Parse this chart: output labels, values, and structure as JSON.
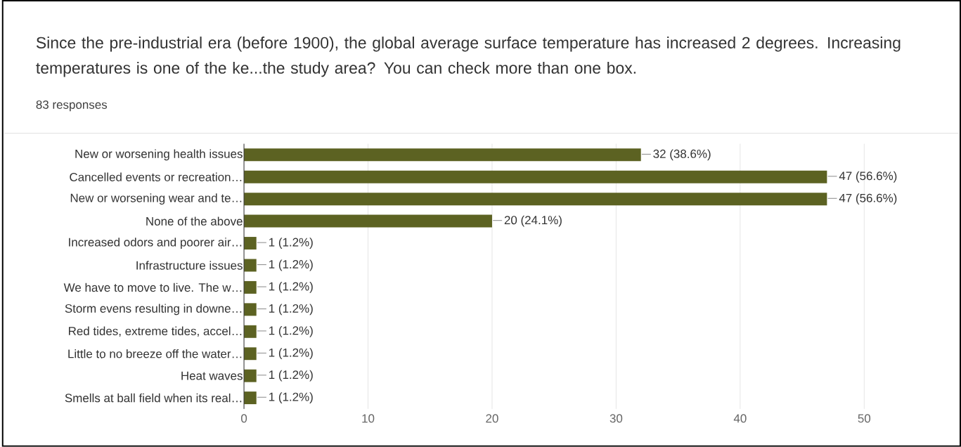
{
  "chart_data": {
    "type": "bar",
    "orientation": "horizontal",
    "title": "Since the pre-industrial era (before 1900), the global average surface temperature has increased 2 degrees. Increasing temperatures is one of the ke...the study area? You can check more than one box.",
    "subtitle": "83 responses",
    "categories": [
      "New or worsening health issues",
      "Cancelled events or recreation…",
      "New or worsening wear and te…",
      "None of the above",
      "Increased odors and poorer air…",
      "Infrastructure issues",
      "We have to move to live. The w…",
      "Storm evens resulting in downe…",
      "Red tides, extreme tides, accel…",
      "Little to no breeze off the water…",
      "Heat waves",
      "Smells at ball field when its real…"
    ],
    "values": [
      32,
      47,
      47,
      20,
      1,
      1,
      1,
      1,
      1,
      1,
      1,
      1
    ],
    "value_labels": [
      "32 (38.6%)",
      "47 (56.6%)",
      "47 (56.6%)",
      "20 (24.1%)",
      "1 (1.2%)",
      "1 (1.2%)",
      "1 (1.2%)",
      "1 (1.2%)",
      "1 (1.2%)",
      "1 (1.2%)",
      "1 (1.2%)",
      "1 (1.2%)"
    ],
    "color": "#5c6222",
    "xlim": [
      0,
      50
    ],
    "xticks": [
      0,
      10,
      20,
      30,
      40,
      50
    ],
    "grid": "x"
  }
}
